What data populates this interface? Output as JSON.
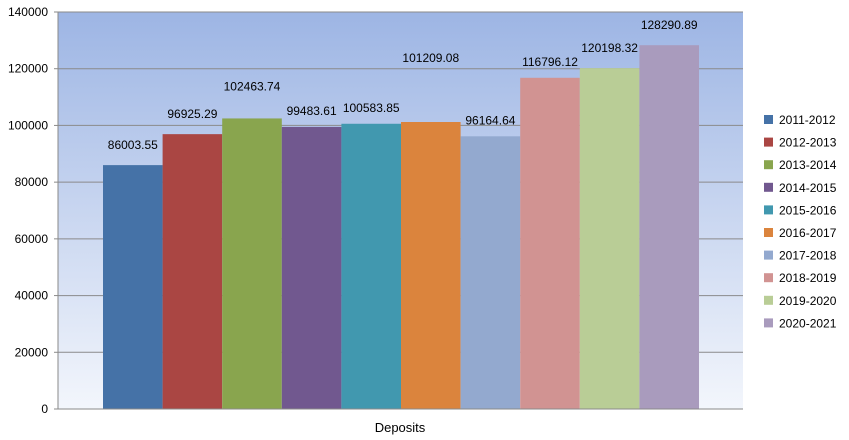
{
  "chart_data": {
    "type": "bar",
    "categories": [
      "Deposits"
    ],
    "xlabel": "Deposits",
    "ylabel": "",
    "ylim": [
      0,
      140000
    ],
    "yticks": [
      0,
      20000,
      40000,
      60000,
      80000,
      100000,
      120000,
      140000
    ],
    "grid": true,
    "legend_position": "right",
    "series": [
      {
        "name": "2011-2012",
        "values": [
          86003.55
        ],
        "color": "#4572A7",
        "label": "86003.55"
      },
      {
        "name": "2012-2013",
        "values": [
          96925.29
        ],
        "color": "#AA4643",
        "label": "96925.29"
      },
      {
        "name": "2013-2014",
        "values": [
          102463.74
        ],
        "color": "#89A54E",
        "label": "102463.74"
      },
      {
        "name": "2014-2015",
        "values": [
          99483.61
        ],
        "color": "#71588F",
        "label": "99483.61"
      },
      {
        "name": "2015-2016",
        "values": [
          100583.85
        ],
        "color": "#4198AF",
        "label": "100583.85"
      },
      {
        "name": "2016-2017",
        "values": [
          101209.08
        ],
        "color": "#DB843D",
        "label": "101209.08"
      },
      {
        "name": "2017-2018",
        "values": [
          96164.64
        ],
        "color": "#93A9CF",
        "label": "96164.64"
      },
      {
        "name": "2018-2019",
        "values": [
          116796.12
        ],
        "color": "#D19392",
        "label": "116796.12"
      },
      {
        "name": "2019-2020",
        "values": [
          120198.32
        ],
        "color": "#B9CD96",
        "label": "120198.32"
      },
      {
        "name": "2020-2021",
        "values": [
          128290.89
        ],
        "color": "#A99BBD",
        "label": "128290.89"
      }
    ]
  }
}
